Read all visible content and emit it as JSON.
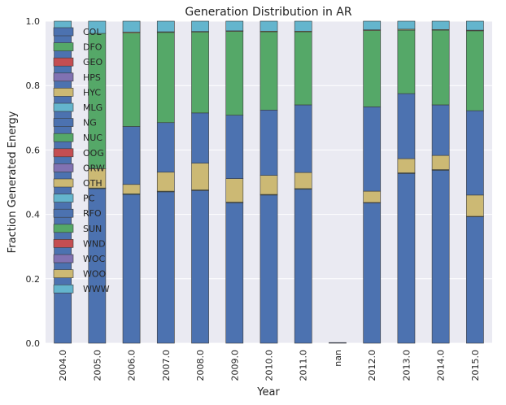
{
  "chart_data": {
    "type": "bar",
    "stacked": true,
    "title": "Generation Distribution in AR",
    "xlabel": "Year",
    "ylabel": "Fraction Generated Energy",
    "ylim": [
      0,
      1.0
    ],
    "yticks": [
      "0.0",
      "0.2",
      "0.4",
      "0.6",
      "0.8",
      "1.0"
    ],
    "grid": true,
    "legend_position": "top-left",
    "categories": [
      "2004.0",
      "2005.0",
      "2006.0",
      "2007.0",
      "2008.0",
      "2009.0",
      "2010.0",
      "2011.0",
      "nan",
      "2012.0",
      "2013.0",
      "2014.0",
      "2015.0"
    ],
    "series": [
      {
        "name": "COL",
        "color": "#4c72b0",
        "values": [
          0.96,
          0.48,
          0.462,
          0.47,
          0.474,
          0.436,
          0.46,
          0.478,
          0.002,
          0.436,
          0.527,
          0.537,
          0.393
        ]
      },
      {
        "name": "DFO",
        "color": "#55a868",
        "values": [
          0.002,
          0.002,
          0.002,
          0.002,
          0.002,
          0.002,
          0.002,
          0.002,
          0,
          0.001,
          0.002,
          0.002,
          0.001
        ]
      },
      {
        "name": "GEO",
        "color": "#c44e52",
        "values": [
          0,
          0,
          0,
          0,
          0,
          0,
          0,
          0,
          0,
          0,
          0,
          0,
          0
        ]
      },
      {
        "name": "HPS",
        "color": "#8172b2",
        "values": [
          0,
          0,
          0,
          0,
          0,
          0,
          0,
          0,
          0,
          0,
          0,
          0,
          0
        ]
      },
      {
        "name": "HYC",
        "color": "#ccb974",
        "values": [
          0,
          0.06,
          0.029,
          0.059,
          0.083,
          0.073,
          0.059,
          0.05,
          0,
          0.035,
          0.044,
          0.044,
          0.066
        ]
      },
      {
        "name": "MLG",
        "color": "#64b5cd",
        "values": [
          0,
          0,
          0,
          0,
          0,
          0,
          0,
          0,
          0,
          0,
          0,
          0,
          0
        ]
      },
      {
        "name": "NG",
        "color": "#4c72b0",
        "values": [
          0,
          0,
          0.18,
          0.154,
          0.156,
          0.197,
          0.203,
          0.21,
          0,
          0.262,
          0.202,
          0.157,
          0.262
        ]
      },
      {
        "name": "NUC",
        "color": "#55a868",
        "values": [
          0,
          0.42,
          0.29,
          0.28,
          0.251,
          0.26,
          0.243,
          0.227,
          0,
          0.237,
          0.197,
          0.232,
          0.248
        ]
      },
      {
        "name": "OOG",
        "color": "#c44e52",
        "values": [
          0,
          0,
          0,
          0,
          0,
          0,
          0,
          0,
          0,
          0,
          0,
          0,
          0
        ]
      },
      {
        "name": "ORW",
        "color": "#8172b2",
        "values": [
          0,
          0,
          0,
          0,
          0,
          0,
          0,
          0,
          0,
          0,
          0,
          0,
          0
        ]
      },
      {
        "name": "OTH",
        "color": "#ccb974",
        "values": [
          0,
          0,
          0.003,
          0.002,
          0.002,
          0.002,
          0.002,
          0.002,
          0,
          0.002,
          0.003,
          0.002,
          0.002
        ]
      },
      {
        "name": "PC",
        "color": "#64b5cd",
        "values": [
          0.038,
          0.038,
          0.034,
          0.033,
          0.032,
          0.03,
          0.031,
          0.031,
          0,
          0.027,
          0.025,
          0.026,
          0.028
        ]
      },
      {
        "name": "RFO",
        "color": "#4c72b0",
        "values": [
          0,
          0,
          0,
          0,
          0,
          0,
          0,
          0,
          0,
          0,
          0,
          0,
          0
        ]
      },
      {
        "name": "SUN",
        "color": "#55a868",
        "values": [
          0,
          0,
          0,
          0,
          0,
          0,
          0,
          0,
          0,
          0,
          0,
          0,
          0
        ]
      },
      {
        "name": "WND",
        "color": "#c44e52",
        "values": [
          0,
          0,
          0,
          0,
          0,
          0,
          0,
          0,
          0,
          0,
          0,
          0,
          0
        ]
      },
      {
        "name": "WOC",
        "color": "#8172b2",
        "values": [
          0,
          0,
          0,
          0,
          0,
          0,
          0,
          0,
          0,
          0,
          0,
          0,
          0
        ]
      },
      {
        "name": "WOO",
        "color": "#ccb974",
        "values": [
          0,
          0,
          0,
          0,
          0,
          0,
          0,
          0,
          0,
          0,
          0,
          0,
          0
        ]
      },
      {
        "name": "WWW",
        "color": "#64b5cd",
        "values": [
          0,
          0,
          0,
          0,
          0,
          0,
          0,
          0,
          0,
          0,
          0,
          0,
          0
        ]
      }
    ]
  }
}
